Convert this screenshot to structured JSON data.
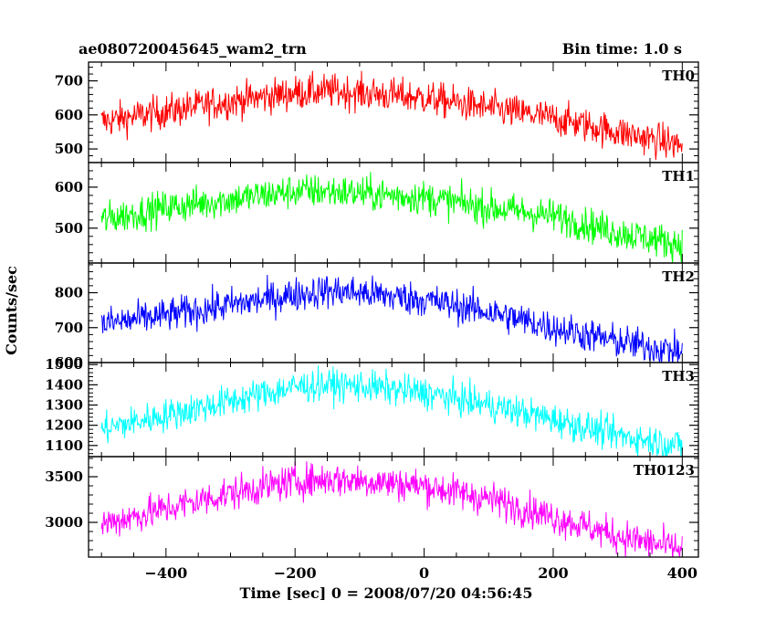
{
  "header": {
    "title": "ae080720045645_wam2_trn",
    "bin_time": "Bin time: 1.0 s"
  },
  "chart_data": {
    "type": "line",
    "title": "ae080720045645_wam2_trn",
    "subtitle": "Bin time: 1.0 s",
    "xlabel": "Time [sec] 0 = 2008/07/20 04:56:45",
    "ylabel": "Counts/sec",
    "xlim": [
      -520,
      425
    ],
    "x_ticks": [
      -400,
      -200,
      0,
      200,
      400
    ],
    "x_tick_labels": [
      "−400",
      "−200",
      "0",
      "200",
      "400"
    ],
    "grid": false,
    "panels": [
      {
        "name": "TH0",
        "color": "#ff0000",
        "ylim": [
          460,
          755
        ],
        "y_ticks": [
          500,
          600,
          700
        ],
        "y_tick_labels": [
          "500",
          "600",
          "700"
        ],
        "x": [
          -500,
          -400,
          -300,
          -200,
          -150,
          -100,
          0,
          100,
          200,
          300,
          400
        ],
        "values": [
          580,
          610,
          640,
          665,
          670,
          665,
          650,
          620,
          590,
          550,
          510
        ]
      },
      {
        "name": "TH1",
        "color": "#00ff00",
        "ylim": [
          415,
          660
        ],
        "y_ticks": [
          500,
          600
        ],
        "y_tick_labels": [
          "500",
          "600"
        ],
        "x": [
          -500,
          -400,
          -300,
          -200,
          -150,
          -100,
          0,
          100,
          200,
          300,
          400
        ],
        "values": [
          520,
          550,
          570,
          590,
          590,
          585,
          575,
          550,
          530,
          490,
          460
        ]
      },
      {
        "name": "TH2",
        "color": "#0000ff",
        "ylim": [
          600,
          885
        ],
        "y_ticks": [
          600,
          700,
          800
        ],
        "y_tick_labels": [
          "600",
          "700",
          "800"
        ],
        "x": [
          -500,
          -400,
          -300,
          -200,
          -150,
          -100,
          0,
          100,
          200,
          300,
          400
        ],
        "values": [
          710,
          735,
          765,
          795,
          805,
          800,
          780,
          745,
          700,
          660,
          630
        ]
      },
      {
        "name": "TH3",
        "color": "#00ffff",
        "ylim": [
          1045,
          1510
        ],
        "y_ticks": [
          1100,
          1200,
          1300,
          1400,
          1500
        ],
        "y_tick_labels": [
          "1100",
          "1200",
          "1300",
          "1400",
          "1500"
        ],
        "x": [
          -500,
          -400,
          -300,
          -200,
          -150,
          -100,
          0,
          100,
          200,
          300,
          400
        ],
        "values": [
          1180,
          1250,
          1320,
          1390,
          1400,
          1395,
          1360,
          1300,
          1230,
          1150,
          1100
        ]
      },
      {
        "name": "TH0123",
        "color": "#ff00ff",
        "ylim": [
          2620,
          3720
        ],
        "y_ticks": [
          3000,
          3500
        ],
        "y_tick_labels": [
          "3000",
          "3500"
        ],
        "x": [
          -500,
          -400,
          -300,
          -200,
          -150,
          -100,
          0,
          100,
          200,
          300,
          400
        ],
        "values": [
          2980,
          3150,
          3320,
          3450,
          3470,
          3460,
          3400,
          3260,
          3060,
          2850,
          2700
        ]
      }
    ]
  }
}
